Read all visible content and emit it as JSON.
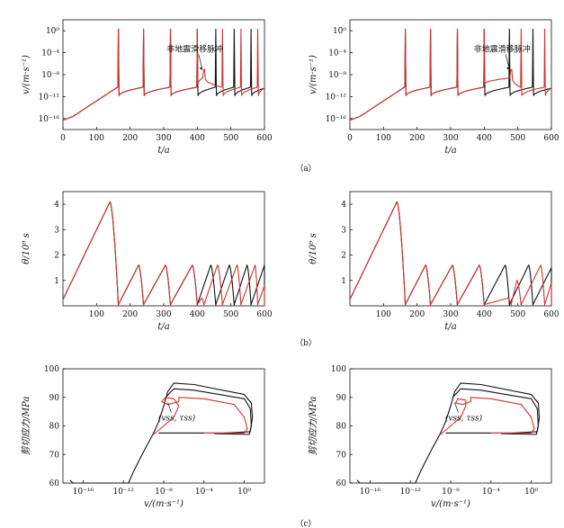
{
  "chart_data": [
    {
      "id": "a-left",
      "type": "line",
      "yscale": "log",
      "xlabel": "t/a",
      "ylabel": "v/(m·s⁻¹)",
      "xlim": [
        0,
        600
      ],
      "xticks": [
        "0",
        "100",
        "200",
        "300",
        "400",
        "500",
        "600"
      ],
      "ylim_log10": [
        -18,
        2
      ],
      "yticks": [
        {
          "exp": 0,
          "label": "10⁰"
        },
        {
          "exp": -4,
          "label": "10⁻⁴"
        },
        {
          "exp": -8,
          "label": "10⁻⁸"
        },
        {
          "exp": -12,
          "label": "10⁻¹²"
        },
        {
          "exp": -16,
          "label": "10⁻¹⁶"
        }
      ],
      "annotation": "非地震滑移脉冲",
      "series": [
        {
          "name": "black",
          "color": "#111111",
          "peak_times": [
            165,
            240,
            320,
            400,
            455,
            510,
            560
          ],
          "pulse_times": []
        },
        {
          "name": "red",
          "color": "#d43030",
          "peak_times": [
            165,
            240,
            320,
            400,
            475,
            530,
            580
          ],
          "pulse_times": [
            420
          ]
        }
      ]
    },
    {
      "id": "a-right",
      "type": "line",
      "yscale": "log",
      "xlabel": "t/a",
      "ylabel": "v/(m·s⁻¹)",
      "xlim": [
        0,
        600
      ],
      "xticks": [
        "0",
        "100",
        "200",
        "300",
        "400",
        "500",
        "600"
      ],
      "ylim_log10": [
        -18,
        2
      ],
      "yticks": [
        {
          "exp": 0,
          "label": "10⁰"
        },
        {
          "exp": -4,
          "label": "10⁻⁴"
        },
        {
          "exp": -8,
          "label": "10⁻⁸"
        },
        {
          "exp": -12,
          "label": "10⁻¹²"
        },
        {
          "exp": -16,
          "label": "10⁻¹⁶"
        }
      ],
      "annotation": "非地震滑移脉冲",
      "series": [
        {
          "name": "black",
          "color": "#111111",
          "peak_times": [
            165,
            240,
            320,
            400,
            475,
            545
          ],
          "pulse_times": []
        },
        {
          "name": "red",
          "color": "#d43030",
          "peak_times": [
            165,
            240,
            320,
            400,
            510,
            580
          ],
          "pulse_times": [
            480
          ]
        }
      ]
    },
    {
      "id": "b-left",
      "type": "line",
      "xlabel": "t/a",
      "ylabel": "θ/10⁹ s",
      "xlim": [
        0,
        600
      ],
      "xticks": [
        "100",
        "200",
        "300",
        "400",
        "500",
        "600"
      ],
      "ylim": [
        0,
        4.5
      ],
      "yticks": [
        "1",
        "2",
        "3",
        "4"
      ],
      "series": [
        {
          "name": "black",
          "color": "#111111",
          "events": [
            {
              "t0": 0,
              "v0": 0.25,
              "t1": 140,
              "v1": 4.1,
              "drop": 165
            },
            {
              "t0": 165,
              "v0": 0.05,
              "t1": 225,
              "v1": 1.6,
              "drop": 240
            },
            {
              "t0": 240,
              "v0": 0.05,
              "t1": 305,
              "v1": 1.6,
              "drop": 320
            },
            {
              "t0": 320,
              "v0": 0.05,
              "t1": 385,
              "v1": 1.6,
              "drop": 400
            },
            {
              "t0": 400,
              "v0": 0.05,
              "t1": 440,
              "v1": 1.6,
              "drop": 455
            },
            {
              "t0": 455,
              "v0": 0.05,
              "t1": 495,
              "v1": 1.6,
              "drop": 510
            },
            {
              "t0": 510,
              "v0": 0.05,
              "t1": 548,
              "v1": 1.6,
              "drop": 560
            },
            {
              "t0": 560,
              "v0": 0.05,
              "t1": 600,
              "v1": 1.6,
              "drop": 600
            }
          ]
        },
        {
          "name": "red",
          "color": "#d43030",
          "events": [
            {
              "t0": 0,
              "v0": 0.25,
              "t1": 140,
              "v1": 4.1,
              "drop": 165
            },
            {
              "t0": 165,
              "v0": 0.05,
              "t1": 225,
              "v1": 1.6,
              "drop": 240
            },
            {
              "t0": 240,
              "v0": 0.05,
              "t1": 305,
              "v1": 1.6,
              "drop": 320
            },
            {
              "t0": 320,
              "v0": 0.05,
              "t1": 385,
              "v1": 1.6,
              "drop": 400
            },
            {
              "t0": 400,
              "v0": 0.05,
              "t1": 413,
              "v1": 0.3,
              "drop": 420
            },
            {
              "t0": 420,
              "v0": 0.05,
              "t1": 460,
              "v1": 1.6,
              "drop": 475
            },
            {
              "t0": 475,
              "v0": 0.05,
              "t1": 518,
              "v1": 1.6,
              "drop": 530
            },
            {
              "t0": 530,
              "v0": 0.05,
              "t1": 572,
              "v1": 1.6,
              "drop": 580
            },
            {
              "t0": 580,
              "v0": 0.05,
              "t1": 600,
              "v1": 0.8,
              "drop": 600
            }
          ]
        }
      ]
    },
    {
      "id": "b-right",
      "type": "line",
      "xlabel": "t/a",
      "ylabel": "θ/10⁹ s",
      "xlim": [
        0,
        600
      ],
      "xticks": [
        "100",
        "200",
        "300",
        "400",
        "500",
        "600"
      ],
      "ylim": [
        0,
        4.5
      ],
      "yticks": [
        "1",
        "2",
        "3",
        "4"
      ],
      "series": [
        {
          "name": "black",
          "color": "#111111",
          "events": [
            {
              "t0": 0,
              "v0": 0.25,
              "t1": 140,
              "v1": 4.1,
              "drop": 165
            },
            {
              "t0": 165,
              "v0": 0.05,
              "t1": 225,
              "v1": 1.6,
              "drop": 240
            },
            {
              "t0": 240,
              "v0": 0.05,
              "t1": 305,
              "v1": 1.6,
              "drop": 320
            },
            {
              "t0": 320,
              "v0": 0.05,
              "t1": 385,
              "v1": 1.6,
              "drop": 400
            },
            {
              "t0": 400,
              "v0": 0.05,
              "t1": 462,
              "v1": 1.6,
              "drop": 475
            },
            {
              "t0": 475,
              "v0": 0.05,
              "t1": 532,
              "v1": 1.6,
              "drop": 545
            },
            {
              "t0": 545,
              "v0": 0.05,
              "t1": 600,
              "v1": 1.5,
              "drop": 600
            }
          ]
        },
        {
          "name": "red",
          "color": "#d43030",
          "events": [
            {
              "t0": 0,
              "v0": 0.25,
              "t1": 140,
              "v1": 4.1,
              "drop": 165
            },
            {
              "t0": 165,
              "v0": 0.05,
              "t1": 225,
              "v1": 1.6,
              "drop": 240
            },
            {
              "t0": 240,
              "v0": 0.05,
              "t1": 305,
              "v1": 1.6,
              "drop": 320
            },
            {
              "t0": 320,
              "v0": 0.05,
              "t1": 385,
              "v1": 1.6,
              "drop": 400
            },
            {
              "t0": 400,
              "v0": 0.05,
              "t1": 470,
              "v1": 0.3,
              "drop": 480
            },
            {
              "t0": 480,
              "v0": 0.05,
              "t1": 497,
              "v1": 1.0,
              "drop": 510
            },
            {
              "t0": 510,
              "v0": 0.05,
              "t1": 568,
              "v1": 1.6,
              "drop": 580
            },
            {
              "t0": 580,
              "v0": 0.05,
              "t1": 600,
              "v1": 0.9,
              "drop": 600
            }
          ]
        }
      ]
    },
    {
      "id": "c-left",
      "type": "line",
      "xscale": "log",
      "xlabel": "v/(m·s⁻¹)",
      "ylabel": "剪切应力/MPa",
      "xlim_log10": [
        -18,
        2
      ],
      "ylim": [
        60,
        100
      ],
      "xticks": [
        {
          "exp": -16,
          "label": "10⁻¹⁶"
        },
        {
          "exp": -12,
          "label": "10⁻¹²"
        },
        {
          "exp": -8,
          "label": "10⁻⁸"
        },
        {
          "exp": -4,
          "label": "10⁻⁴"
        },
        {
          "exp": 0,
          "label": "10⁰"
        }
      ],
      "yticks": [
        "60",
        "70",
        "80",
        "90",
        "100"
      ],
      "annotation": "(vss, τss)",
      "series": [
        {
          "name": "black",
          "color": "#111111",
          "points": [
            [
              -17.3,
              61.0
            ],
            [
              -17.0,
              60.0
            ],
            [
              -14.0,
              60.0
            ],
            [
              -11.5,
              60.0
            ],
            [
              -11.0,
              64.0
            ],
            [
              -10.0,
              71.0
            ],
            [
              -9.0,
              77.5
            ],
            [
              -8.5,
              81.5
            ],
            [
              -8.0,
              87.0
            ],
            [
              -7.6,
              92.0
            ],
            [
              -7.0,
              95.0
            ],
            [
              -5.0,
              94.5
            ],
            [
              0.0,
              91.0
            ],
            [
              0.7,
              88.0
            ],
            [
              0.8,
              83.0
            ],
            [
              0.6,
              78.0
            ],
            [
              -2.0,
              77.5
            ],
            [
              -6.0,
              77.5
            ],
            [
              -8.5,
              77.5
            ]
          ]
        },
        {
          "name": "black-inner",
          "color": "#111111",
          "points": [
            [
              -7.8,
              90.0
            ],
            [
              -7.0,
              93.0
            ],
            [
              -5.0,
              92.5
            ],
            [
              0.0,
              89.5
            ],
            [
              0.6,
              86.0
            ],
            [
              0.7,
              80.0
            ],
            [
              0.5,
              77.0
            ],
            [
              -3.0,
              77.3
            ]
          ]
        },
        {
          "name": "red",
          "color": "#d43030",
          "points": [
            [
              -9.0,
              77.0
            ],
            [
              -8.0,
              80.0
            ],
            [
              -7.0,
              83.0
            ],
            [
              -6.5,
              87.0
            ],
            [
              -7.0,
              89.5
            ],
            [
              -7.8,
              90.0
            ],
            [
              -8.2,
              88.5
            ],
            [
              -7.6,
              87.5
            ],
            [
              -6.5,
              88.5
            ],
            [
              -6.5,
              90.0
            ],
            [
              -4.0,
              89.5
            ],
            [
              -1.0,
              87.5
            ],
            [
              0.0,
              83.0
            ],
            [
              0.3,
              79.0
            ],
            [
              0.0,
              77.5
            ],
            [
              -4.0,
              77.5
            ]
          ]
        }
      ]
    },
    {
      "id": "c-right",
      "type": "line",
      "xscale": "log",
      "xlabel": "v/(m·s⁻¹)",
      "ylabel": "剪切应力/MPa",
      "xlim_log10": [
        -18,
        2
      ],
      "ylim": [
        60,
        100
      ],
      "xticks": [
        {
          "exp": -16,
          "label": "10⁻¹⁶"
        },
        {
          "exp": -12,
          "label": "10⁻¹²"
        },
        {
          "exp": -8,
          "label": "10⁻⁸"
        },
        {
          "exp": -4,
          "label": "10⁻⁴"
        },
        {
          "exp": 0,
          "label": "10⁰"
        }
      ],
      "yticks": [
        "60",
        "70",
        "80",
        "90",
        "100"
      ],
      "annotation": "(vss, τss)",
      "series": [
        {
          "name": "black",
          "color": "#111111",
          "points": [
            [
              -17.3,
              61.0
            ],
            [
              -17.0,
              60.0
            ],
            [
              -14.0,
              60.0
            ],
            [
              -11.5,
              60.0
            ],
            [
              -11.0,
              64.0
            ],
            [
              -10.0,
              71.0
            ],
            [
              -9.0,
              77.5
            ],
            [
              -8.5,
              81.5
            ],
            [
              -8.0,
              87.0
            ],
            [
              -7.6,
              92.0
            ],
            [
              -7.0,
              95.0
            ],
            [
              -5.0,
              94.5
            ],
            [
              0.0,
              91.0
            ],
            [
              0.7,
              88.0
            ],
            [
              0.8,
              83.0
            ],
            [
              0.6,
              78.0
            ],
            [
              -2.0,
              77.5
            ],
            [
              -6.0,
              77.5
            ],
            [
              -8.5,
              77.5
            ]
          ]
        },
        {
          "name": "black-inner",
          "color": "#111111",
          "points": [
            [
              -7.8,
              90.0
            ],
            [
              -7.0,
              93.0
            ],
            [
              -5.0,
              92.5
            ],
            [
              0.0,
              89.5
            ],
            [
              0.6,
              86.0
            ],
            [
              0.7,
              80.0
            ],
            [
              0.5,
              77.0
            ],
            [
              -3.0,
              77.3
            ]
          ]
        },
        {
          "name": "red",
          "color": "#d43030",
          "points": [
            [
              -9.0,
              77.0
            ],
            [
              -8.0,
              80.0
            ],
            [
              -7.0,
              83.0
            ],
            [
              -6.5,
              87.0
            ],
            [
              -6.5,
              89.0
            ],
            [
              -7.3,
              89.5
            ],
            [
              -7.5,
              88.0
            ],
            [
              -6.8,
              87.5
            ],
            [
              -6.0,
              88.5
            ],
            [
              -6.0,
              90.0
            ],
            [
              -4.0,
              89.5
            ],
            [
              -1.0,
              87.5
            ],
            [
              0.0,
              83.0
            ],
            [
              0.3,
              79.0
            ],
            [
              0.0,
              77.5
            ],
            [
              -4.0,
              77.5
            ]
          ]
        }
      ]
    }
  ],
  "captions": {
    "a": "（a）",
    "b": "（b）",
    "c": "（c）"
  }
}
